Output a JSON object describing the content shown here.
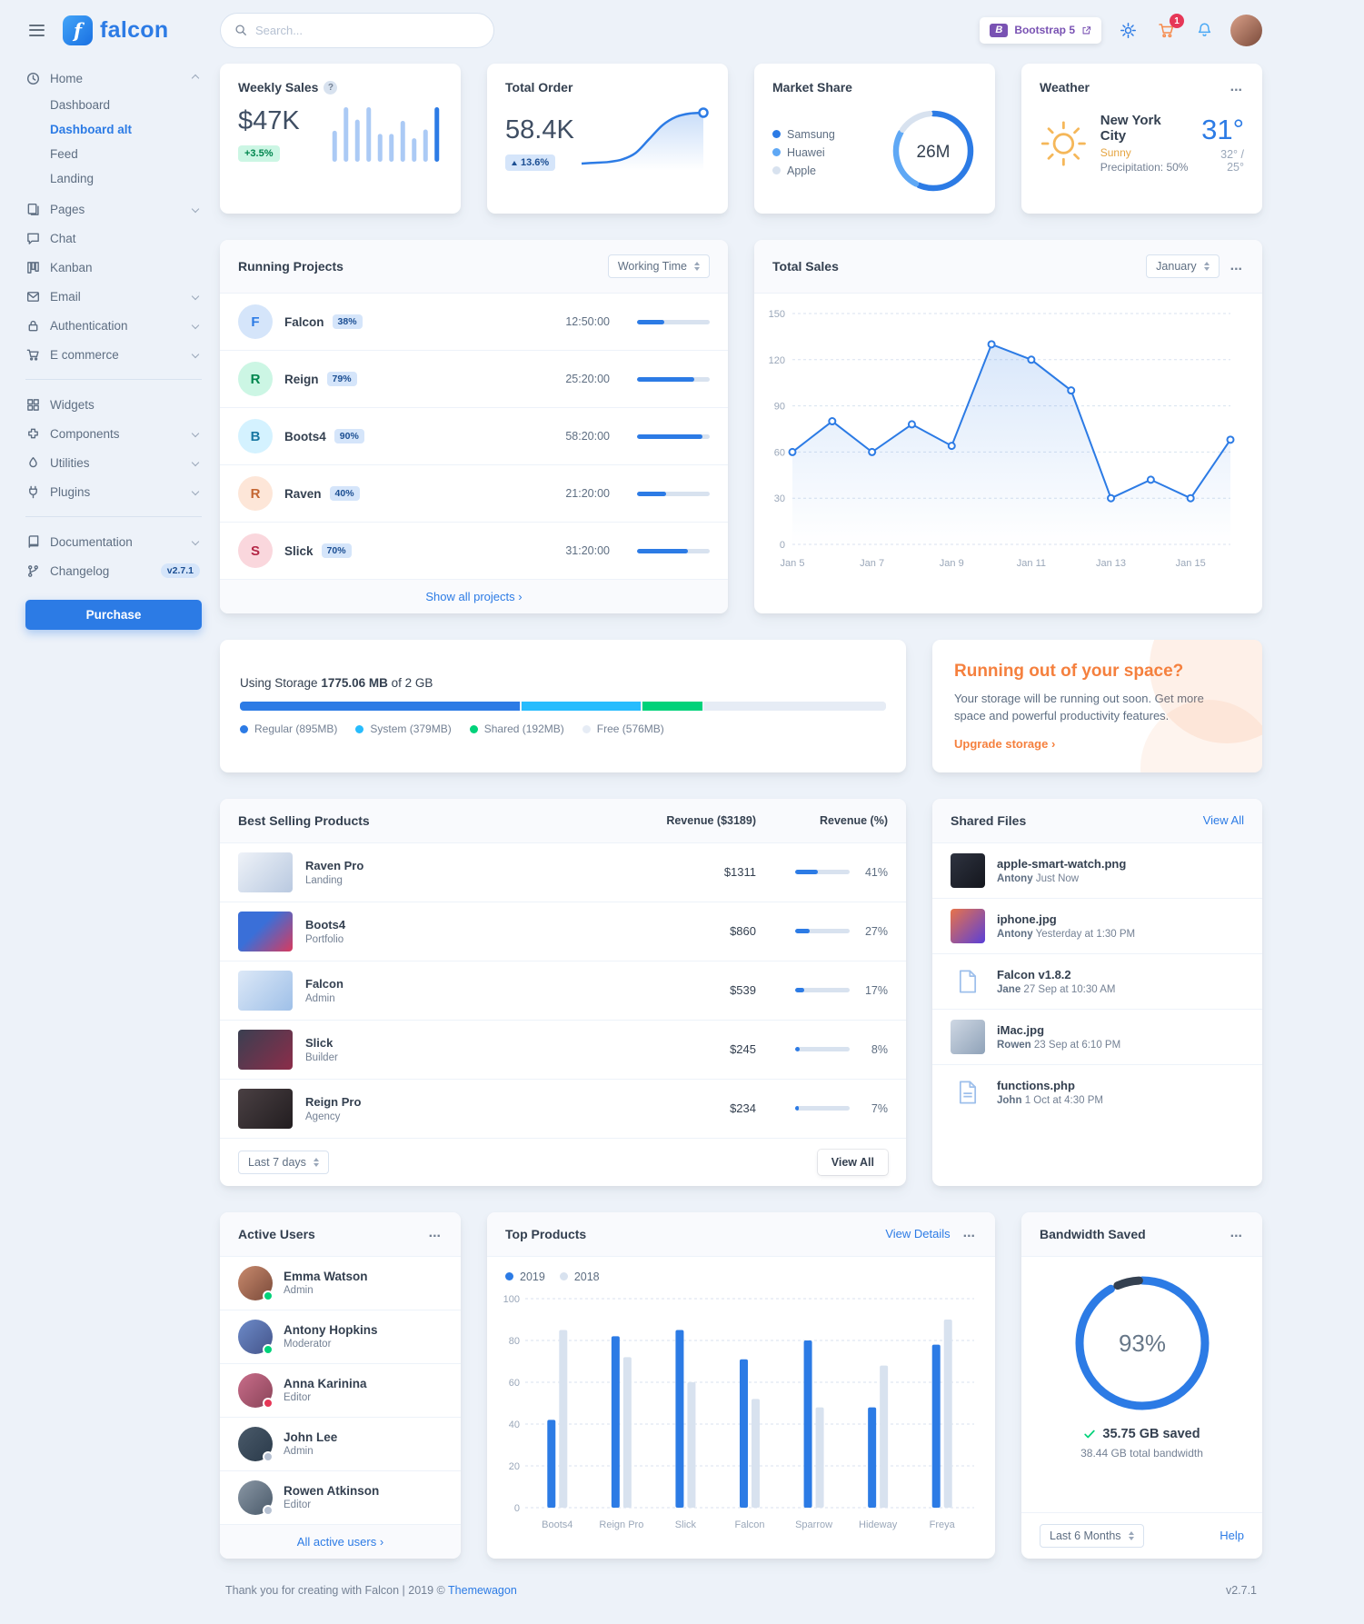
{
  "brand": {
    "name": "falcon",
    "mark": "f"
  },
  "icons": {
    "dots": "...",
    "question": "?",
    "angle_right": "›"
  },
  "topbar": {
    "search_placeholder": "Search...",
    "bootstrap_label": "Bootstrap 5",
    "cart_count": "1"
  },
  "sidebar": {
    "items": [
      {
        "label": "Home"
      },
      {
        "label": "Dashboard"
      },
      {
        "label": "Dashboard alt"
      },
      {
        "label": "Feed"
      },
      {
        "label": "Landing"
      },
      {
        "label": "Pages"
      },
      {
        "label": "Chat"
      },
      {
        "label": "Kanban"
      },
      {
        "label": "Email"
      },
      {
        "label": "Authentication"
      },
      {
        "label": "E commerce"
      },
      {
        "label": "Widgets"
      },
      {
        "label": "Components"
      },
      {
        "label": "Utilities"
      },
      {
        "label": "Plugins"
      },
      {
        "label": "Documentation"
      },
      {
        "label": "Changelog",
        "badge": "v2.7.1"
      }
    ],
    "purchase_label": "Purchase"
  },
  "weekly_sales": {
    "title": "Weekly Sales",
    "value": "$47K",
    "badge": "+3.5%"
  },
  "total_order": {
    "title": "Total Order",
    "value": "58.4K",
    "badge": "13.6%"
  },
  "market_share": {
    "title": "Market Share",
    "legend": [
      "Samsung",
      "Huawei",
      "Apple"
    ]
  },
  "weather": {
    "title": "Weather",
    "city": "New York City",
    "condition": "Sunny",
    "precipitation": "Precipitation: 50%",
    "temp": "31°",
    "high_low": "32° / 25°"
  },
  "running_projects": {
    "title": "Running Projects",
    "filter": "Working Time",
    "rows": [
      {
        "initial": "F",
        "name": "Falcon",
        "percent": "38%",
        "time": "12:50:00",
        "progress": 38
      },
      {
        "initial": "R",
        "name": "Reign",
        "percent": "79%",
        "time": "25:20:00",
        "progress": 79
      },
      {
        "initial": "B",
        "name": "Boots4",
        "percent": "90%",
        "time": "58:20:00",
        "progress": 90
      },
      {
        "initial": "R",
        "name": "Raven",
        "percent": "40%",
        "time": "21:20:00",
        "progress": 40
      },
      {
        "initial": "S",
        "name": "Slick",
        "percent": "70%",
        "time": "31:20:00",
        "progress": 70
      }
    ],
    "footer_link": "Show all projects"
  },
  "total_sales": {
    "title": "Total Sales",
    "filter": "January"
  },
  "storage": {
    "label_prefix": "Using Storage",
    "used": "1775.06 MB",
    "label_suffix": "of 2 GB",
    "segments": [
      {
        "label": "Regular (895MB)",
        "percent": 43.7,
        "color": "#2c7be5"
      },
      {
        "label": "System (379MB)",
        "percent": 18.5,
        "color": "#27bcfd"
      },
      {
        "label": "Shared (192MB)",
        "percent": 9.4,
        "color": "#00d27a"
      },
      {
        "label": "Free (576MB)",
        "percent": 28.4,
        "color": "#e6ecf5"
      }
    ]
  },
  "space_promo": {
    "title": "Running out of your space?",
    "body": "Your storage will be running out soon. Get more space and powerful productivity features.",
    "link": "Upgrade storage"
  },
  "best_selling": {
    "title": "Best Selling Products",
    "col_revenue": "Revenue ($3189)",
    "col_percent": "Revenue (%)",
    "rows": [
      {
        "name": "Raven Pro",
        "category": "Landing",
        "revenue": "$1311",
        "percent": "41%",
        "progress": 41
      },
      {
        "name": "Boots4",
        "category": "Portfolio",
        "revenue": "$860",
        "percent": "27%",
        "progress": 27
      },
      {
        "name": "Falcon",
        "category": "Admin",
        "revenue": "$539",
        "percent": "17%",
        "progress": 17
      },
      {
        "name": "Slick",
        "category": "Builder",
        "revenue": "$245",
        "percent": "8%",
        "progress": 8
      },
      {
        "name": "Reign Pro",
        "category": "Agency",
        "revenue": "$234",
        "percent": "7%",
        "progress": 7
      }
    ],
    "filter": "Last 7 days",
    "view_all": "View All"
  },
  "shared_files": {
    "title": "Shared Files",
    "view_all": "View All",
    "rows": [
      {
        "name": "apple-smart-watch.png",
        "by": "Antony",
        "time": "Just Now"
      },
      {
        "name": "iphone.jpg",
        "by": "Antony",
        "time": "Yesterday at 1:30 PM"
      },
      {
        "name": "Falcon v1.8.2",
        "by": "Jane",
        "time": "27 Sep at 10:30 AM"
      },
      {
        "name": "iMac.jpg",
        "by": "Rowen",
        "time": "23 Sep at 6:10 PM"
      },
      {
        "name": "functions.php",
        "by": "John",
        "time": "1 Oct at 4:30 PM"
      }
    ]
  },
  "active_users": {
    "title": "Active Users",
    "rows": [
      {
        "name": "Emma Watson",
        "role": "Admin",
        "status": "online"
      },
      {
        "name": "Antony Hopkins",
        "role": "Moderator",
        "status": "online"
      },
      {
        "name": "Anna Karinina",
        "role": "Editor",
        "status": "busy"
      },
      {
        "name": "John Lee",
        "role": "Admin",
        "status": "offline"
      },
      {
        "name": "Rowen Atkinson",
        "role": "Editor",
        "status": "offline"
      }
    ],
    "footer_link": "All active users"
  },
  "top_products": {
    "title": "Top Products",
    "view_details": "View Details"
  },
  "bandwidth": {
    "title": "Bandwidth Saved",
    "saved": "35.75 GB saved",
    "total": "38.44 GB total bandwidth",
    "filter": "Last 6 Months",
    "help": "Help"
  },
  "page_footer": {
    "thanks": "Thank you for creating with Falcon |",
    "year": "2019 ©",
    "brand": "Themewagon",
    "version": "v2.7.1"
  },
  "chart_data": [
    {
      "id": "weekly_sales",
      "type": "bar",
      "values": [
        50,
        88,
        68,
        88,
        45,
        45,
        66,
        38,
        52,
        88
      ],
      "accent": "#2c7be5"
    },
    {
      "id": "total_order",
      "type": "line",
      "values": [
        15,
        16,
        17,
        20,
        28,
        45,
        62,
        72,
        76,
        77
      ],
      "accent": "#2c7be5"
    },
    {
      "id": "market_share",
      "type": "pie",
      "labels": [
        "Samsung",
        "Huawei",
        "Apple"
      ],
      "values": [
        15,
        7,
        4
      ],
      "center_label": "26M",
      "colors": [
        "#2c7be5",
        "#5fa8f5",
        "#d8e2ef"
      ]
    },
    {
      "id": "total_sales",
      "type": "line",
      "x": [
        "Jan 5",
        "Jan 6",
        "Jan 7",
        "Jan 8",
        "Jan 9",
        "Jan 10",
        "Jan 11",
        "Jan 12",
        "Jan 13",
        "Jan 14",
        "Jan 15",
        "Jan 16"
      ],
      "x_ticks": [
        "Jan 5",
        "Jan 7",
        "Jan 9",
        "Jan 11",
        "Jan 13",
        "Jan 15"
      ],
      "values": [
        60,
        80,
        60,
        78,
        64,
        130,
        120,
        100,
        30,
        42,
        30,
        68
      ],
      "ylim": [
        0,
        150
      ],
      "yticks": [
        0,
        30,
        60,
        90,
        120,
        150
      ],
      "grid": true,
      "accent": "#2c7be5"
    },
    {
      "id": "top_products",
      "type": "grouped-bar",
      "categories": [
        "Boots4",
        "Reign Pro",
        "Slick",
        "Falcon",
        "Sparrow",
        "Hideway",
        "Freya"
      ],
      "series": [
        {
          "name": "2019",
          "values": [
            42,
            82,
            85,
            71,
            80,
            48,
            78
          ],
          "color": "#2c7be5"
        },
        {
          "name": "2018",
          "values": [
            85,
            72,
            60,
            52,
            48,
            68,
            90
          ],
          "color": "#d8e2ef"
        }
      ],
      "ylim": [
        0,
        100
      ],
      "yticks": [
        0,
        20,
        40,
        60,
        80,
        100
      ],
      "grid": true
    },
    {
      "id": "bandwidth",
      "type": "ring",
      "value": 93,
      "colors": [
        "#2c7be5",
        "#344050"
      ]
    }
  ]
}
